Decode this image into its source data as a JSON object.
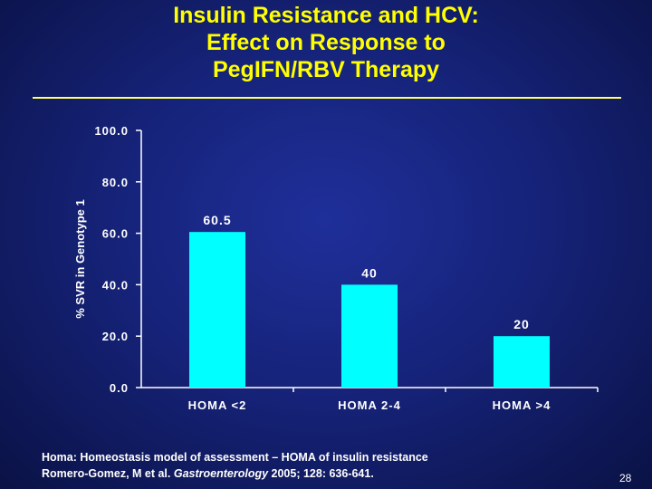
{
  "slide": {
    "title_lines": [
      "Insulin Resistance and HCV:",
      "Effect on Response to",
      "PegIFN/RBV Therapy"
    ],
    "footnote": {
      "line1": "Homa: Homeostasis model of assessment – HOMA of insulin resistance",
      "line2_prefix": "Romero-Gomez, M et al. ",
      "journal": "Gastroenterology",
      "line2_suffix": " 2005; 128: 636-641."
    },
    "page_number": "28"
  },
  "chart_data": {
    "type": "bar",
    "title": "",
    "xlabel": "",
    "ylabel": "% SVR in Genotype 1",
    "categories": [
      "HOMA <2",
      "HOMA 2-4",
      "HOMA >4"
    ],
    "values": [
      60.5,
      40,
      20
    ],
    "value_labels": [
      "60.5",
      "40",
      "20"
    ],
    "ylim": [
      0,
      100
    ],
    "yticks": [
      0,
      20,
      40,
      60,
      80,
      100
    ],
    "ytick_labels": [
      "0.0",
      "20.0",
      "40.0",
      "60.0",
      "80.0",
      "100.0"
    ],
    "grid": false,
    "bar_color": "#00ffff"
  }
}
